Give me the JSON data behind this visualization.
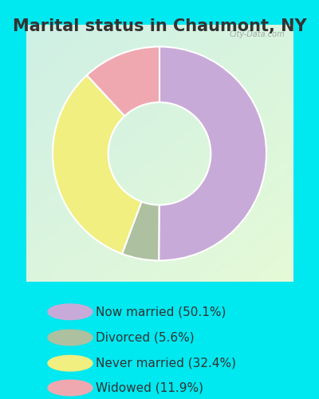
{
  "title": "Marital status in Chaumont, NY",
  "slices": [
    50.1,
    5.6,
    32.4,
    11.9
  ],
  "labels": [
    "Now married (50.1%)",
    "Divorced (5.6%)",
    "Never married (32.4%)",
    "Widowed (11.9%)"
  ],
  "colors": [
    "#c8aad8",
    "#adc0a0",
    "#f0ef80",
    "#f0a8b0"
  ],
  "bg_cyan": "#00e8f0",
  "chart_bg_color": "#e0f2e8",
  "donut_width": 0.52,
  "start_angle": 90,
  "watermark": "City-Data.com",
  "legend_fontsize": 11,
  "title_fontsize": 15,
  "title_color": "#333333"
}
